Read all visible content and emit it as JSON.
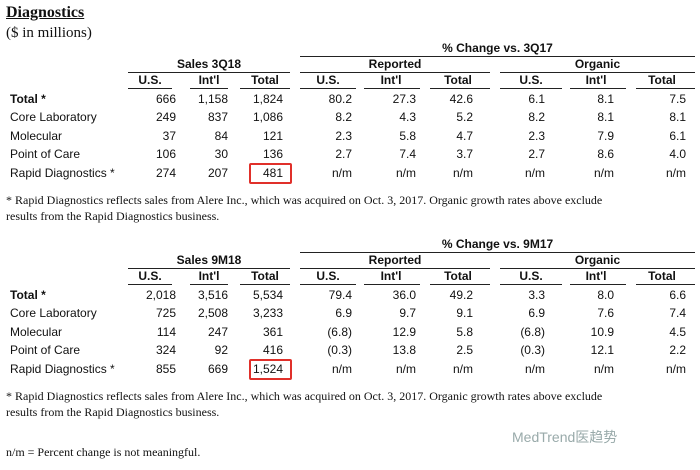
{
  "title": "Diagnostics",
  "subtitle": "($ in millions)",
  "tables": [
    {
      "sales_header": "Sales 3Q18",
      "change_header": "% Change vs. 3Q17",
      "reported": "Reported",
      "organic": "Organic",
      "columns": [
        "U.S.",
        "Int'l",
        "Total",
        "U.S.",
        "Int'l",
        "Total",
        "U.S.",
        "Int'l",
        "Total"
      ],
      "rows": [
        [
          "Total *",
          "666",
          "1,158",
          "1,824",
          "80.2",
          "27.3",
          "42.6",
          "6.1",
          "8.1",
          "7.5"
        ],
        [
          "Core Laboratory",
          "249",
          "837",
          "1,086",
          "8.2",
          "4.3",
          "5.2",
          "8.2",
          "8.1",
          "8.1"
        ],
        [
          "Molecular",
          "37",
          "84",
          "121",
          "2.3",
          "5.8",
          "4.7",
          "2.3",
          "7.9",
          "6.1"
        ],
        [
          "Point of Care",
          "106",
          "30",
          "136",
          "2.7",
          "7.4",
          "3.7",
          "2.7",
          "8.6",
          "4.0"
        ],
        [
          "Rapid Diagnostics *",
          "274",
          "207",
          "481",
          "n/m",
          "n/m",
          "n/m",
          "n/m",
          "n/m",
          "n/m"
        ]
      ],
      "footnote": [
        "* Rapid Diagnostics reflects sales from Alere Inc., which was acquired on Oct. 3, 2017. Organic growth rates above exclude",
        "results from the Rapid Diagnostics business."
      ]
    },
    {
      "sales_header": "Sales 9M18",
      "change_header": "% Change vs. 9M17",
      "reported": "Reported",
      "organic": "Organic",
      "columns": [
        "U.S.",
        "Int'l",
        "Total",
        "U.S.",
        "Int'l",
        "Total",
        "U.S.",
        "Int'l",
        "Total"
      ],
      "rows": [
        [
          "Total *",
          "2,018",
          "3,516",
          "5,534",
          "79.4",
          "36.0",
          "49.2",
          "3.3",
          "8.0",
          "6.6"
        ],
        [
          "Core Laboratory",
          "725",
          "2,508",
          "3,233",
          "6.9",
          "9.7",
          "9.1",
          "6.9",
          "7.6",
          "7.4"
        ],
        [
          "Molecular",
          "114",
          "247",
          "361",
          "(6.8)",
          "12.9",
          "5.8",
          "(6.8)",
          "10.9",
          "4.5"
        ],
        [
          "Point of Care",
          "324",
          "92",
          "416",
          "(0.3)",
          "13.8",
          "2.5",
          "(0.3)",
          "12.1",
          "2.2"
        ],
        [
          "Rapid Diagnostics *",
          "855",
          "669",
          "1,524",
          "n/m",
          "n/m",
          "n/m",
          "n/m",
          "n/m",
          "n/m"
        ]
      ],
      "footnote": [
        "* Rapid Diagnostics reflects sales from Alere Inc., which was acquired on Oct. 3, 2017. Organic growth rates above exclude",
        "results from the Rapid Diagnostics business."
      ]
    }
  ],
  "note": "n/m = Percent change is not meaningful.",
  "watermark": "MedTrend医趋势"
}
